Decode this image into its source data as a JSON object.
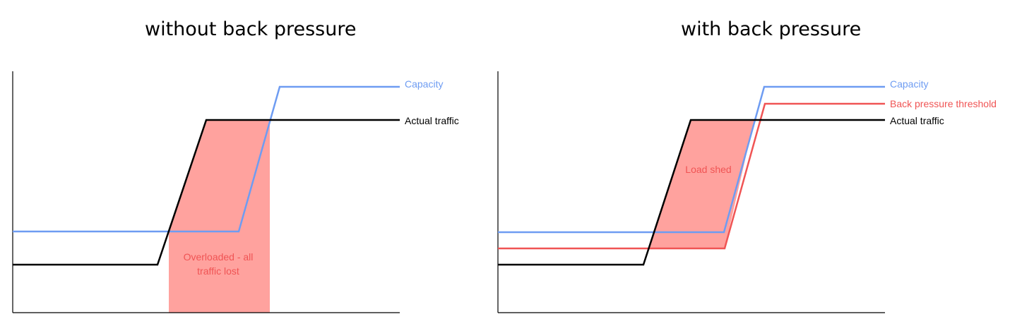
{
  "panels": [
    {
      "title": "without back pressure",
      "lines": [
        {
          "label": "Capacity",
          "color": "#6e9cf2"
        },
        {
          "label": "Actual traffic",
          "color": "#000000"
        }
      ],
      "region_label_lines": [
        "Overloaded - all",
        "traffic lost"
      ],
      "region_color": "#ffa29e",
      "region_text_color": "#f05454"
    },
    {
      "title": "with back pressure",
      "lines": [
        {
          "label": "Capacity",
          "color": "#6e9cf2"
        },
        {
          "label": "Back pressure threshold",
          "color": "#f05454"
        },
        {
          "label": "Actual traffic",
          "color": "#000000"
        }
      ],
      "region_label_lines": [
        "Load shed"
      ],
      "region_color": "#ffa29e",
      "region_text_color": "#f05454"
    }
  ]
}
